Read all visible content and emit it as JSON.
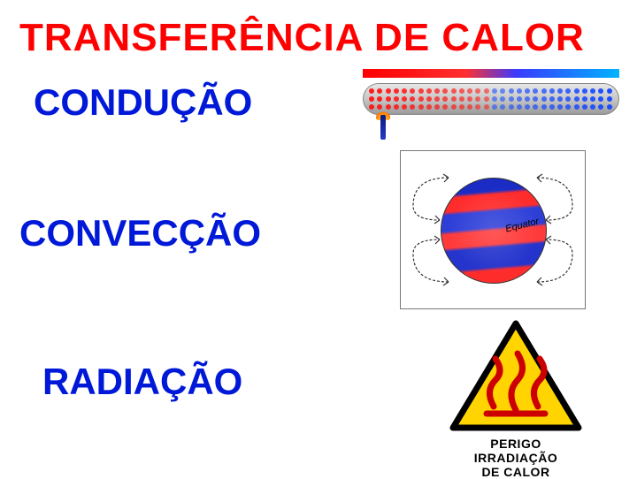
{
  "title": {
    "text": "TRANSFERÊNCIA DE CALOR",
    "color": "#ff0000",
    "fontsize": 44
  },
  "headings": {
    "conduction": {
      "text": "CONDUÇÃO",
      "color": "#0018d8"
    },
    "convection": {
      "text": "CONVECÇÃO",
      "color": "#0018d8"
    },
    "radiation": {
      "text": "RADIAÇÃO",
      "color": "#0018d8"
    }
  },
  "conduction_fig": {
    "gradient_stops": [
      "#ff0000",
      "#ff3030",
      "#3a3aff",
      "#00b3ff"
    ],
    "rod_colors": [
      "#e6e6e6",
      "#c7c7c7",
      "#9b9b9b"
    ],
    "hot_color": "#ff1a1a",
    "cold_color": "#1a4cff"
  },
  "convection_fig": {
    "equator_label": "Equator",
    "globe_band_colors": [
      "#1a2cc4",
      "#ff2c2c",
      "#2e3fd8",
      "#ff3a3a",
      "#2434cc",
      "#ff2c2c"
    ],
    "arrow_color": "#333333",
    "border_color": "#777777"
  },
  "radiation_sign": {
    "triangle_fill": "#ffd400",
    "triangle_border": "#000000",
    "heat_color": "#cc0000",
    "line1": "PERIGO",
    "line2": "IRRADIAÇÃO",
    "line3": "DE CALOR"
  }
}
